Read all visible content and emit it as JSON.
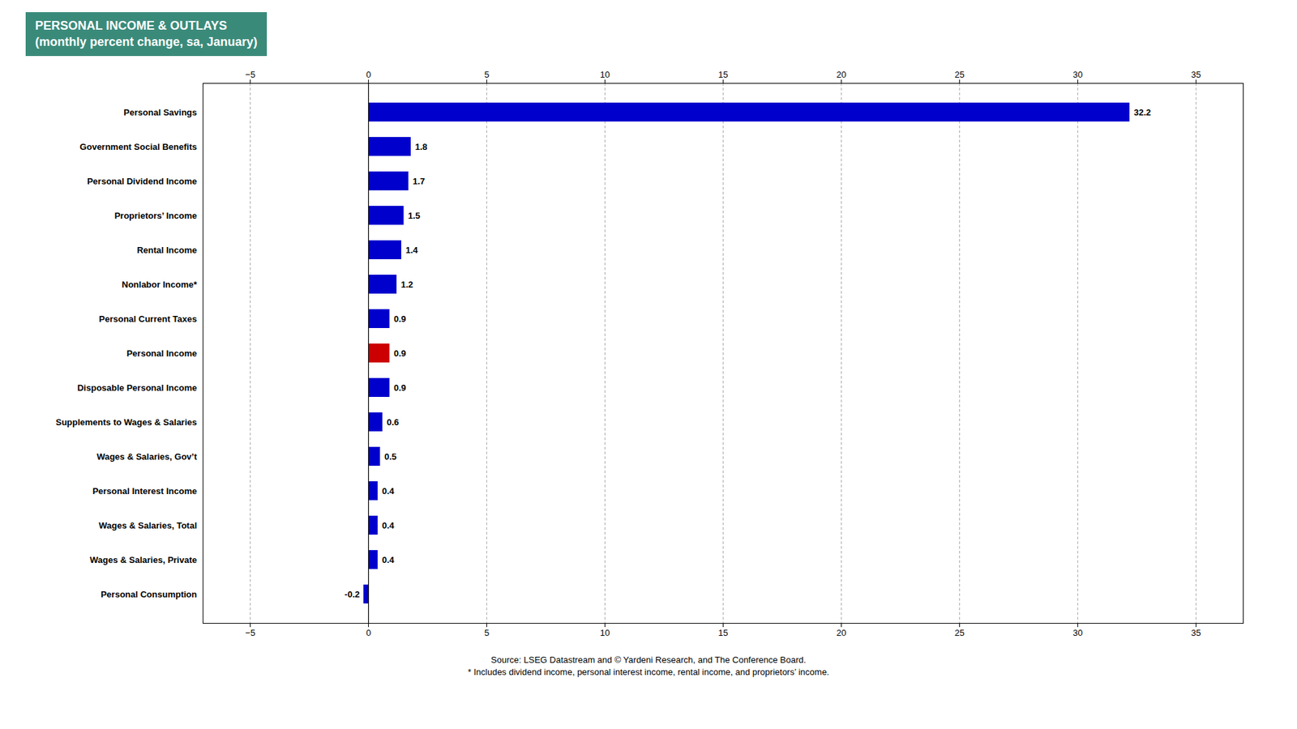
{
  "chart_data": {
    "type": "bar",
    "orientation": "horizontal",
    "title": "PERSONAL INCOME & OUTLAYS",
    "subtitle": "(monthly percent change, sa, January)",
    "categories": [
      "Personal Savings",
      "Government Social Benefits",
      "Personal Dividend Income",
      "Proprietors’ Income",
      "Rental Income",
      "Nonlabor Income*",
      "Personal Current Taxes",
      "Personal Income",
      "Disposable Personal Income",
      "Supplements to Wages & Salaries",
      "Wages & Salaries, Gov’t",
      "Personal Interest Income",
      "Wages & Salaries, Total",
      "Wages & Salaries, Private",
      "Personal Consumption"
    ],
    "values": [
      32.2,
      1.8,
      1.7,
      1.5,
      1.4,
      1.2,
      0.9,
      0.9,
      0.9,
      0.6,
      0.5,
      0.4,
      0.4,
      0.4,
      -0.2
    ],
    "colors": [
      "#0000cc",
      "#0000cc",
      "#0000cc",
      "#0000cc",
      "#0000cc",
      "#0000cc",
      "#0000cc",
      "#cc0000",
      "#0000cc",
      "#0000cc",
      "#0000cc",
      "#0000cc",
      "#0000cc",
      "#0000cc",
      "#0000cc"
    ],
    "xlim": [
      -7,
      37
    ],
    "xticks": [
      -5,
      0,
      5,
      10,
      15,
      20,
      25,
      30,
      35
    ],
    "grid": true,
    "data_labels": true,
    "annotations": [
      "Source: LSEG Datastream and © Yardeni Research, and The Conference Board.",
      "* Includes dividend income, personal interest income, rental income, and proprietors’ income."
    ]
  }
}
